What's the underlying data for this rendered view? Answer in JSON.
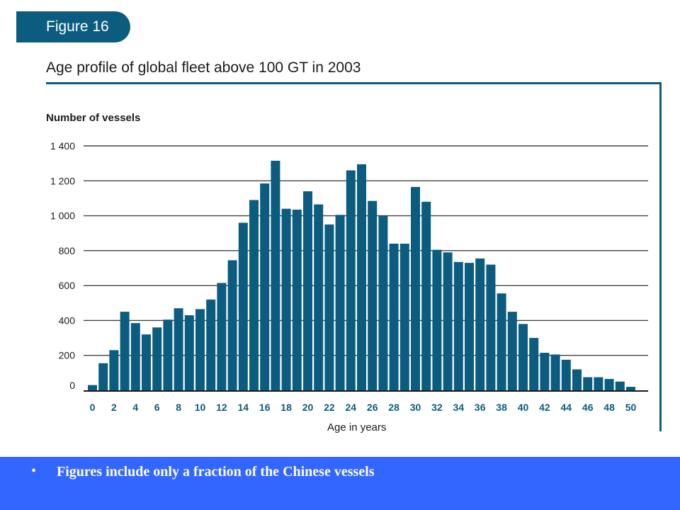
{
  "figure_label": "Figure 16",
  "footer": {
    "bullet": "•",
    "text": "Figures include only a fraction of the Chinese vessels"
  },
  "chart_data": {
    "type": "bar",
    "title": "Age profile of global fleet above 100 GT in 2003",
    "xlabel": "Age in years",
    "ylabel": "Number of vessels",
    "ylim": [
      0,
      1400
    ],
    "yticks": [
      0,
      200,
      400,
      600,
      800,
      1000,
      1200,
      1400
    ],
    "ytick_labels": [
      "0",
      "200",
      "400",
      "600",
      "800",
      "1 000",
      "1 200",
      "1 400"
    ],
    "grid": true,
    "color": "#0c5c80",
    "categories": [
      0,
      1,
      2,
      3,
      4,
      5,
      6,
      7,
      8,
      9,
      10,
      11,
      12,
      13,
      14,
      15,
      16,
      17,
      18,
      19,
      20,
      21,
      22,
      23,
      24,
      25,
      26,
      27,
      28,
      29,
      30,
      31,
      32,
      33,
      34,
      35,
      36,
      37,
      38,
      39,
      40,
      41,
      42,
      43,
      44,
      45,
      46,
      47,
      48,
      49,
      50
    ],
    "xtick_labels": [
      "0",
      "2",
      "4",
      "6",
      "8",
      "10",
      "12",
      "14",
      "16",
      "18",
      "20",
      "22",
      "24",
      "26",
      "28",
      "30",
      "32",
      "34",
      "36",
      "38",
      "40",
      "42",
      "44",
      "46",
      "48",
      "50"
    ],
    "values": [
      30,
      155,
      230,
      450,
      385,
      320,
      360,
      405,
      470,
      430,
      465,
      520,
      615,
      745,
      960,
      1090,
      1185,
      1315,
      1040,
      1035,
      1140,
      1065,
      950,
      1005,
      1260,
      1295,
      1085,
      1000,
      840,
      840,
      1165,
      1080,
      805,
      790,
      735,
      730,
      755,
      720,
      555,
      450,
      380,
      300,
      215,
      205,
      175,
      120,
      75,
      75,
      65,
      50,
      20
    ]
  }
}
